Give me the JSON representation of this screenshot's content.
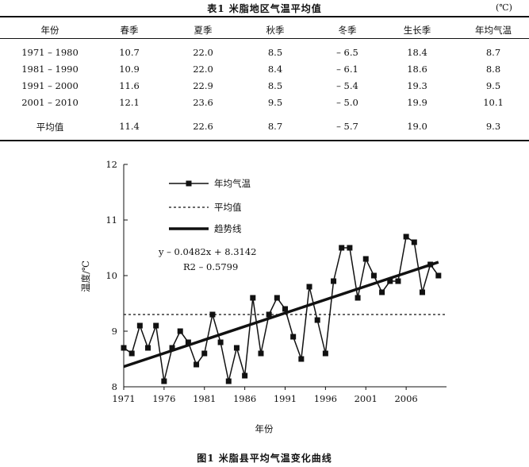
{
  "table": {
    "title": "表1   米脂地区气温平均值",
    "unit": "(℃)",
    "headers": [
      "年份",
      "春季",
      "夏季",
      "秋季",
      "冬季",
      "生长季",
      "年均气温"
    ],
    "rows": [
      [
        "1971 – 1980",
        "10.7",
        "22.0",
        "8.5",
        "– 6.5",
        "18.4",
        "8.7"
      ],
      [
        "1981 – 1990",
        "10.9",
        "22.0",
        "8.4",
        "– 6.1",
        "18.6",
        "8.8"
      ],
      [
        "1991 – 2000",
        "11.6",
        "22.9",
        "8.5",
        "– 5.4",
        "19.3",
        "9.5"
      ],
      [
        "2001 – 2010",
        "12.1",
        "23.6",
        "9.5",
        "– 5.0",
        "19.9",
        "10.1"
      ]
    ],
    "average_row": [
      "平均值",
      "11.4",
      "22.6",
      "8.7",
      "– 5.7",
      "19.0",
      "9.3"
    ]
  },
  "chart_data": {
    "type": "line",
    "xlabel": "年份",
    "ylabel": "温度/℃",
    "xlim": [
      1971,
      2011
    ],
    "ylim": [
      8,
      12
    ],
    "x_ticks": [
      1971,
      1976,
      1981,
      1986,
      1991,
      1996,
      2001,
      2006
    ],
    "y_ticks": [
      8,
      9,
      10,
      11,
      12
    ],
    "x": [
      1971,
      1972,
      1973,
      1974,
      1975,
      1976,
      1977,
      1978,
      1979,
      1980,
      1981,
      1982,
      1983,
      1984,
      1985,
      1986,
      1987,
      1988,
      1989,
      1990,
      1991,
      1992,
      1993,
      1994,
      1995,
      1996,
      1997,
      1998,
      1999,
      2000,
      2001,
      2002,
      2003,
      2004,
      2005,
      2006,
      2007,
      2008,
      2009,
      2010
    ],
    "series": [
      {
        "name": "年均气温",
        "values": [
          8.7,
          8.6,
          9.1,
          8.7,
          9.1,
          8.1,
          8.7,
          9.0,
          8.8,
          8.4,
          8.6,
          9.3,
          8.8,
          8.1,
          8.7,
          8.2,
          9.6,
          8.6,
          9.3,
          9.6,
          9.4,
          8.9,
          8.5,
          9.8,
          9.2,
          8.6,
          9.9,
          10.5,
          10.5,
          9.6,
          10.3,
          10.0,
          9.7,
          9.9,
          9.9,
          10.7,
          10.6,
          9.7,
          10.2,
          10.0
        ]
      },
      {
        "name": "平均值",
        "value": 9.3
      },
      {
        "name": "趋势线",
        "slope": 0.0482,
        "intercept": 8.3142
      }
    ],
    "annotation_equation": "y – 0.0482x + 8.3142",
    "annotation_r2": "R2 – 0.5799",
    "legend_position": "top-left",
    "grid": false
  },
  "figure": {
    "caption": "图1   米脂县平均气温变化曲线"
  }
}
